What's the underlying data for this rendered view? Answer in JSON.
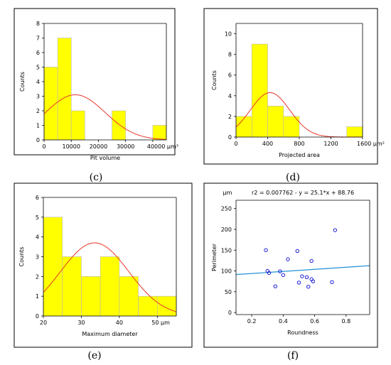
{
  "chart_data": [
    {
      "type": "bar",
      "caption": "(c)",
      "xlabel": "Pit volume",
      "ylabel": "Counts",
      "x_unit": "µm³",
      "bin_edges": [
        0,
        5000,
        10000,
        15000,
        20000,
        25000,
        30000,
        35000,
        40000,
        45000
      ],
      "values": [
        5,
        7,
        2,
        0,
        0,
        2,
        0,
        0,
        1
      ],
      "xticks": [
        "0",
        "10000",
        "20000",
        "30000",
        "40000 µm³"
      ],
      "xtick_values": [
        0,
        10000,
        20000,
        30000,
        40000
      ],
      "yticks": [
        0,
        1,
        2,
        3,
        4,
        5,
        6,
        7,
        8
      ],
      "xlim": [
        0,
        45000
      ],
      "ylim": [
        0,
        8
      ],
      "fit_curve": {
        "type": "normal",
        "mean": 11500,
        "sd": 11000,
        "peak": 3.1,
        "color": "#e8382c"
      },
      "bar_color": "#ffff00",
      "grid": false
    },
    {
      "type": "bar",
      "caption": "(d)",
      "xlabel": "Projected area",
      "ylabel": "Counts",
      "x_unit": "µm²",
      "bin_edges": [
        0,
        200,
        400,
        600,
        800,
        1000,
        1200,
        1400,
        1600
      ],
      "values": [
        2,
        9,
        3,
        2,
        0,
        0,
        0,
        1
      ],
      "xticks": [
        "0",
        "400",
        "800",
        "1200",
        "1600 µm²"
      ],
      "xtick_values": [
        0,
        400,
        800,
        1200,
        1600
      ],
      "yticks": [
        0,
        2,
        4,
        6,
        8,
        10
      ],
      "xlim": [
        0,
        1600
      ],
      "ylim": [
        0,
        11
      ],
      "fit_curve": {
        "type": "normal",
        "mean": 430,
        "sd": 250,
        "peak": 4.3,
        "color": "#e8382c"
      },
      "bar_color": "#ffff00",
      "grid": false
    },
    {
      "type": "bar",
      "caption": "(e)",
      "xlabel": "Maximum diameter",
      "ylabel": "Counts",
      "x_unit": "µm",
      "bin_edges": [
        20,
        25,
        30,
        35,
        40,
        45,
        50,
        55
      ],
      "values": [
        5,
        3,
        2,
        3,
        2,
        1,
        1
      ],
      "xticks": [
        "20",
        "30",
        "40",
        "50 µm"
      ],
      "xtick_values": [
        20,
        30,
        40,
        50
      ],
      "yticks": [
        0,
        1,
        2,
        3,
        4,
        5,
        6
      ],
      "xlim": [
        20,
        55
      ],
      "ylim": [
        0,
        6
      ],
      "fit_curve": {
        "type": "normal",
        "mean": 33.5,
        "sd": 9,
        "peak": 3.7,
        "color": "#e8382c"
      },
      "bar_color": "#ffff00",
      "grid": false
    },
    {
      "type": "scatter",
      "caption": "(f)",
      "xlabel": "Roundness",
      "ylabel": "Perimeter",
      "y_unit": "µm",
      "equation": "r2 = 0.007762   -   y = 25.1*x + 88.76",
      "x": [
        0.29,
        0.3,
        0.31,
        0.35,
        0.38,
        0.4,
        0.43,
        0.49,
        0.5,
        0.52,
        0.55,
        0.56,
        0.58,
        0.58,
        0.59,
        0.71,
        0.73
      ],
      "y": [
        150,
        100,
        95,
        63,
        99,
        90,
        128,
        148,
        72,
        87,
        85,
        62,
        124,
        80,
        75,
        73,
        198
      ],
      "xticks": [
        "0.2",
        "0.4",
        "0.6",
        "0.8"
      ],
      "xtick_values": [
        0.2,
        0.4,
        0.6,
        0.8
      ],
      "yticks": [
        0,
        50,
        100,
        150,
        200,
        250
      ],
      "xlim": [
        0.1,
        0.95
      ],
      "ylim": [
        -5,
        270
      ],
      "trendline": {
        "slope": 25.1,
        "intercept": 88.76,
        "color": "#1c8fd8"
      },
      "marker_color": "#1a1ad6",
      "grid": false
    }
  ]
}
